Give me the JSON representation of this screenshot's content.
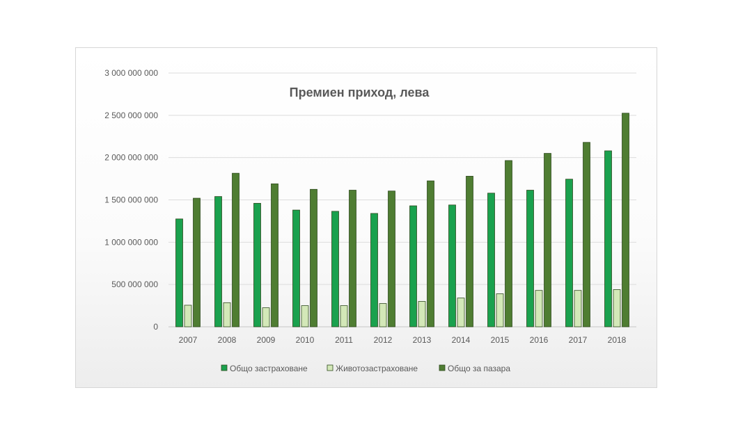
{
  "chart_data": {
    "type": "bar",
    "title": "Премиен приход, лева",
    "xlabel": "",
    "ylabel": "",
    "categories": [
      "2007",
      "2008",
      "2009",
      "2010",
      "2011",
      "2012",
      "2013",
      "2014",
      "2015",
      "2016",
      "2017",
      "2018"
    ],
    "series": [
      {
        "name": "Общо застраховане",
        "color": "#1aa14e",
        "values": [
          1275000000,
          1540000000,
          1460000000,
          1380000000,
          1365000000,
          1340000000,
          1430000000,
          1440000000,
          1580000000,
          1615000000,
          1745000000,
          2080000000
        ]
      },
      {
        "name": "Животозастраховане",
        "color": "#d3e8b8",
        "values": [
          255000000,
          285000000,
          225000000,
          250000000,
          250000000,
          275000000,
          300000000,
          340000000,
          390000000,
          430000000,
          430000000,
          440000000
        ]
      },
      {
        "name": "Общо за пазара",
        "color": "#4f7d32",
        "values": [
          1520000000,
          1815000000,
          1690000000,
          1625000000,
          1615000000,
          1605000000,
          1725000000,
          1780000000,
          1965000000,
          2050000000,
          2180000000,
          2525000000
        ]
      }
    ],
    "ylim": [
      0,
      3000000000
    ],
    "yticks": [
      0,
      500000000,
      1000000000,
      1500000000,
      2000000000,
      2500000000,
      3000000000
    ],
    "ytick_labels": [
      "0",
      "500 000 000",
      "1 000 000 000",
      "1 500 000 000",
      "2 000 000 000",
      "2 500 000 000",
      "3 000 000 000"
    ],
    "grid": true,
    "legend_position": "bottom"
  }
}
